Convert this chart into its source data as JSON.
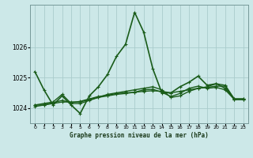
{
  "title": "Graphe pression niveau de la mer (hPa)",
  "bg_color": "#cce8e8",
  "grid_color": "#aacccc",
  "line_color": "#1a5c1a",
  "xlim": [
    -0.5,
    23.5
  ],
  "ylim": [
    1023.5,
    1027.4
  ],
  "yticks": [
    1024,
    1025,
    1026
  ],
  "xticks": [
    0,
    1,
    2,
    3,
    4,
    5,
    6,
    7,
    8,
    9,
    10,
    11,
    12,
    13,
    14,
    15,
    16,
    17,
    18,
    19,
    20,
    21,
    22,
    23
  ],
  "series": [
    [
      1025.2,
      1024.6,
      1024.1,
      1024.4,
      1024.1,
      1023.82,
      1024.4,
      1024.7,
      1025.1,
      1025.7,
      1026.1,
      1027.15,
      1026.5,
      1025.3,
      1024.5,
      1024.5,
      1024.7,
      1024.85,
      1025.05,
      1024.75,
      1024.8,
      1024.65,
      1024.3,
      1024.3
    ],
    [
      1024.1,
      1024.15,
      1024.2,
      1024.45,
      1024.15,
      1024.15,
      1024.25,
      1024.35,
      1024.45,
      1024.5,
      1024.55,
      1024.6,
      1024.65,
      1024.7,
      1024.6,
      1024.35,
      1024.4,
      1024.55,
      1024.65,
      1024.7,
      1024.8,
      1024.75,
      1024.3,
      1024.3
    ],
    [
      1024.1,
      1024.1,
      1024.15,
      1024.2,
      1024.2,
      1024.2,
      1024.28,
      1024.35,
      1024.4,
      1024.45,
      1024.48,
      1024.52,
      1024.55,
      1024.57,
      1024.55,
      1024.5,
      1024.55,
      1024.6,
      1024.65,
      1024.68,
      1024.72,
      1024.72,
      1024.28,
      1024.28
    ],
    [
      1024.05,
      1024.1,
      1024.18,
      1024.25,
      1024.18,
      1024.22,
      1024.3,
      1024.38,
      1024.42,
      1024.48,
      1024.5,
      1024.52,
      1024.6,
      1024.62,
      1024.52,
      1024.38,
      1024.48,
      1024.65,
      1024.72,
      1024.65,
      1024.68,
      1024.6,
      1024.28,
      1024.28
    ]
  ]
}
